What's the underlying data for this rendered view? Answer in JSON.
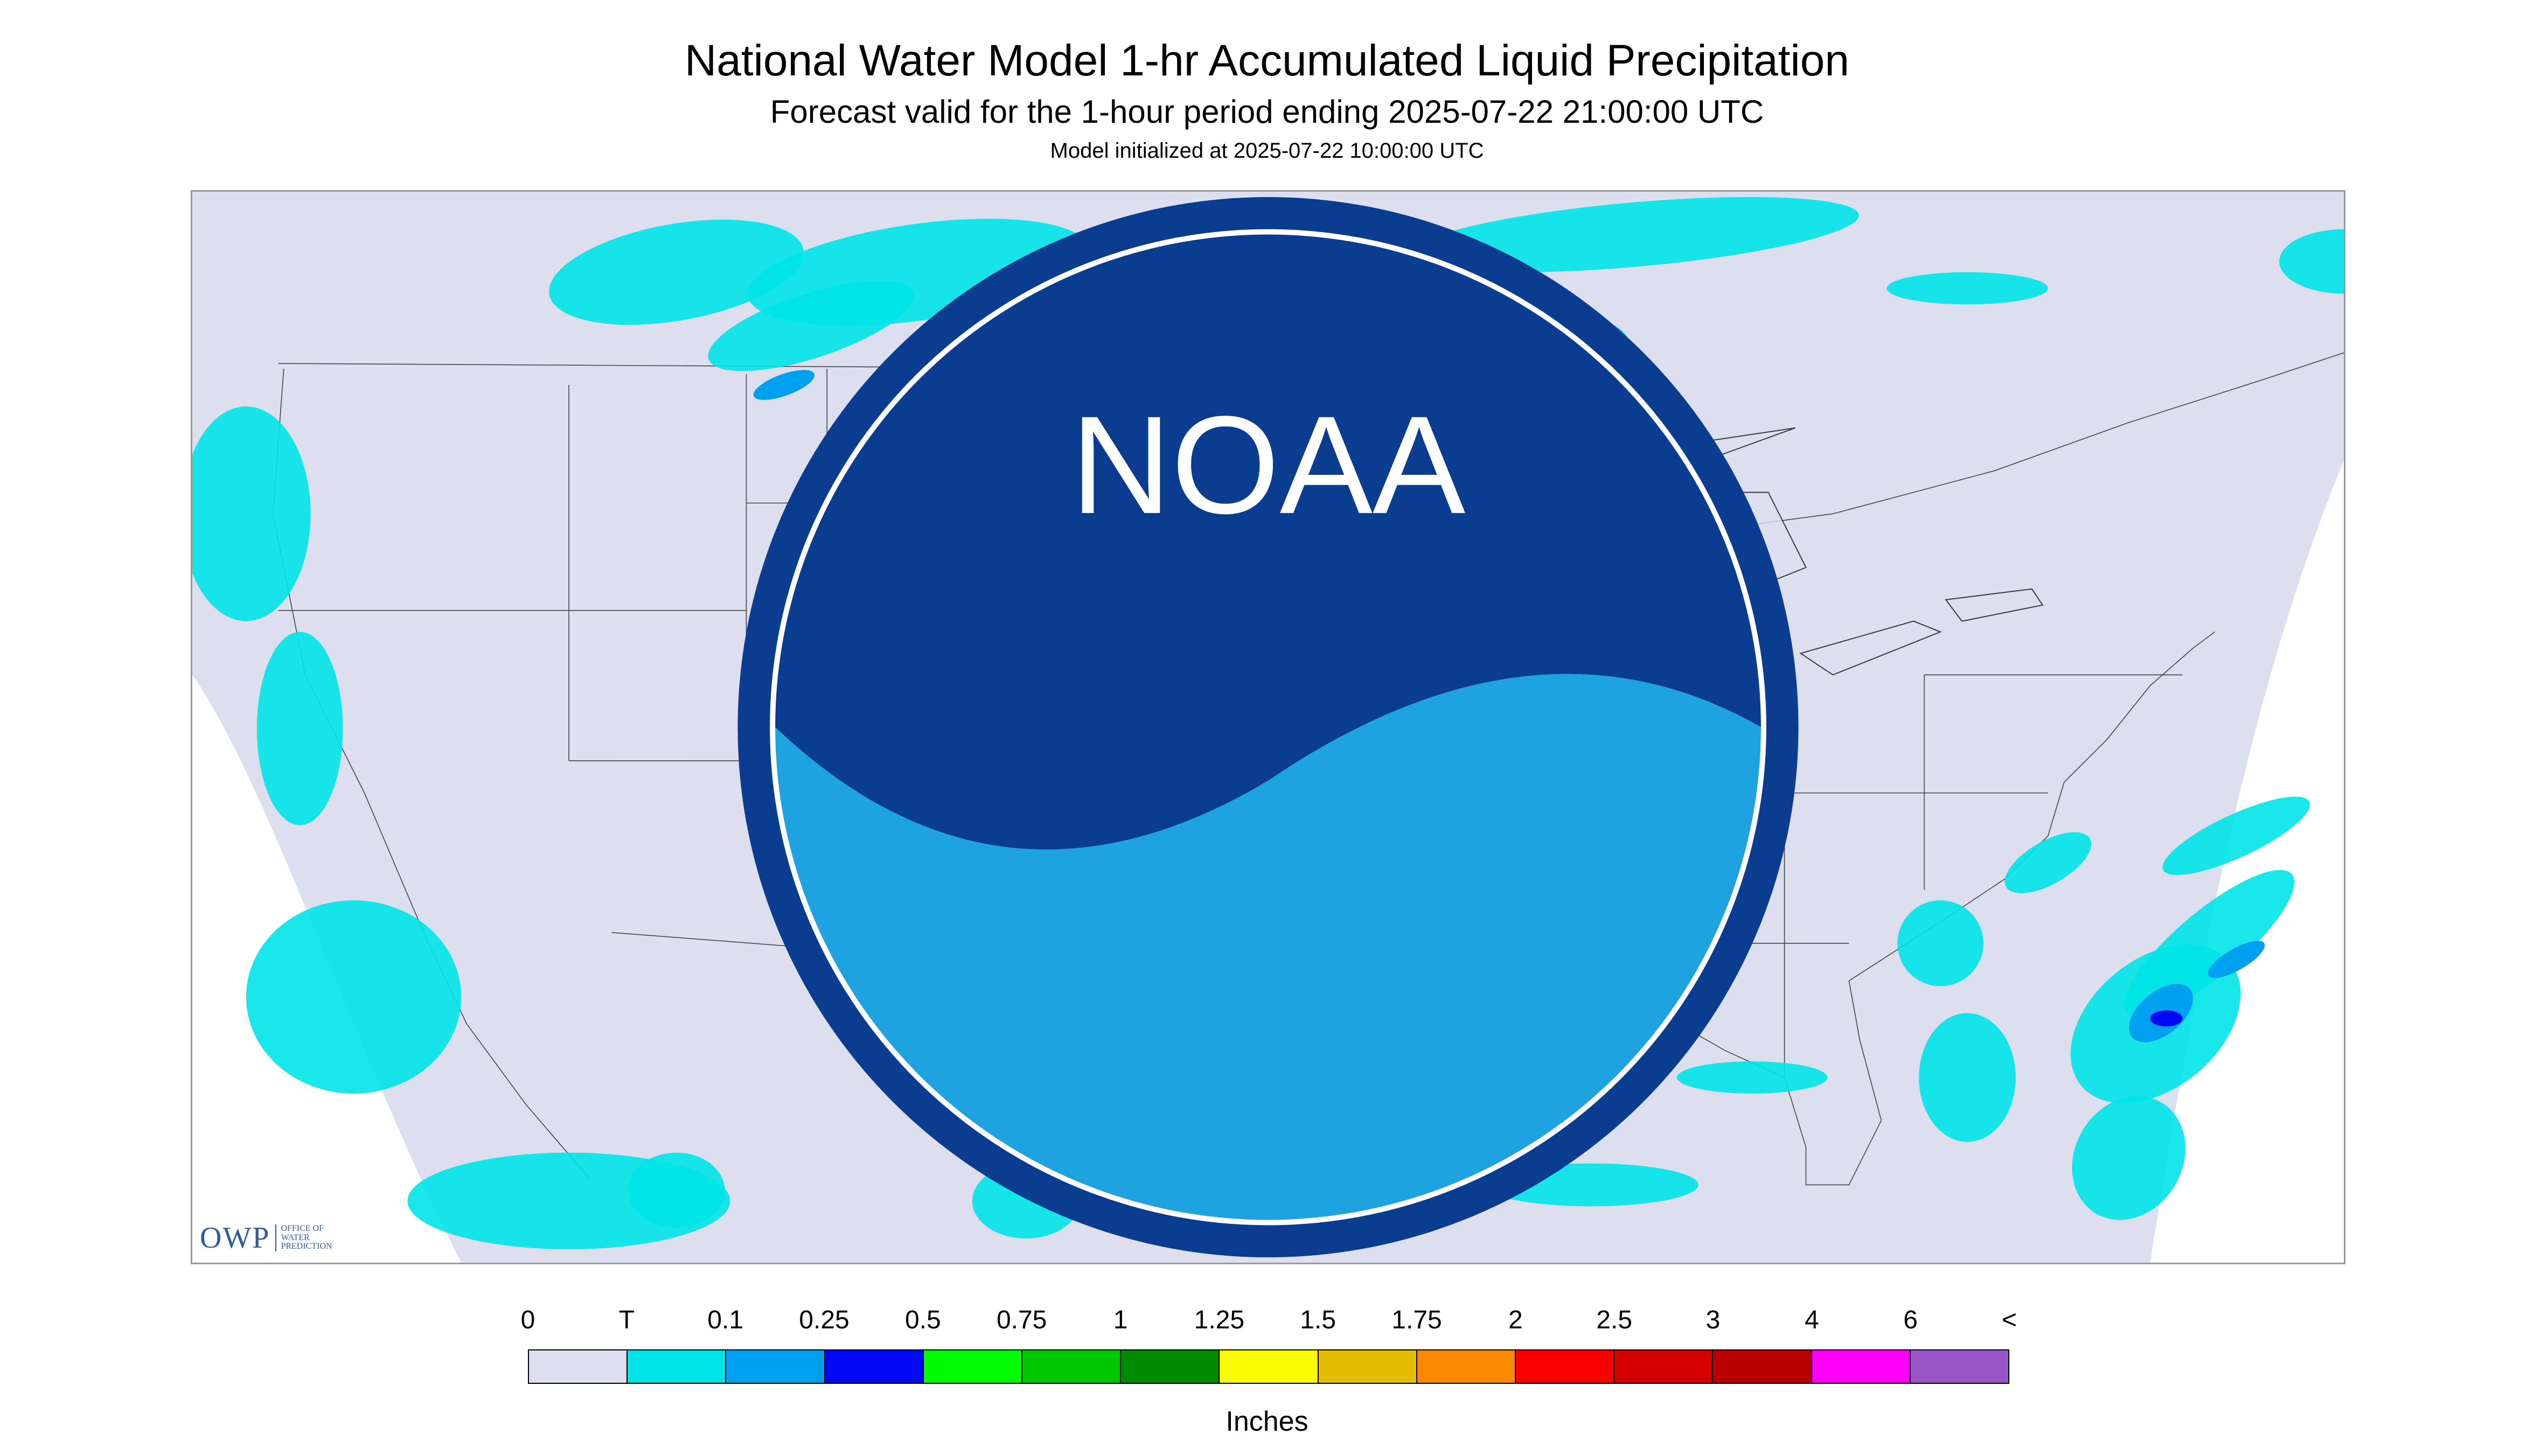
{
  "header": {
    "title": "National Water Model 1-hr Accumulated Liquid Precipitation",
    "subtitle": "Forecast valid for the 1-hour period ending 2025-07-22 21:00:00 UTC",
    "init_text": "Model initialized at 2025-07-22 10:00:00 UTC"
  },
  "map": {
    "background_color": "#dddeee",
    "outside_color": "#ffffff",
    "line_color": "#111111",
    "owp_logo": {
      "main": "OWP",
      "sub_lines": [
        "OFFICE OF",
        "WATER",
        "PREDICTION"
      ]
    },
    "noaa_logo": {
      "label": "NOAA"
    }
  },
  "legend": {
    "labels": [
      "0",
      "T",
      "0.1",
      "0.25",
      "0.5",
      "0.75",
      "1",
      "1.25",
      "1.5",
      "1.75",
      "2",
      "2.5",
      "3",
      "4",
      "6",
      "<"
    ],
    "colors": [
      "#dddeee",
      "#00e4e8",
      "#00a0f0",
      "#0008f4",
      "#00fc00",
      "#00c800",
      "#008a00",
      "#fcfc00",
      "#e4bc00",
      "#fc8800",
      "#fc0000",
      "#d40000",
      "#b80000",
      "#fc00fc",
      "#9855c8"
    ],
    "units": "Inches"
  }
}
